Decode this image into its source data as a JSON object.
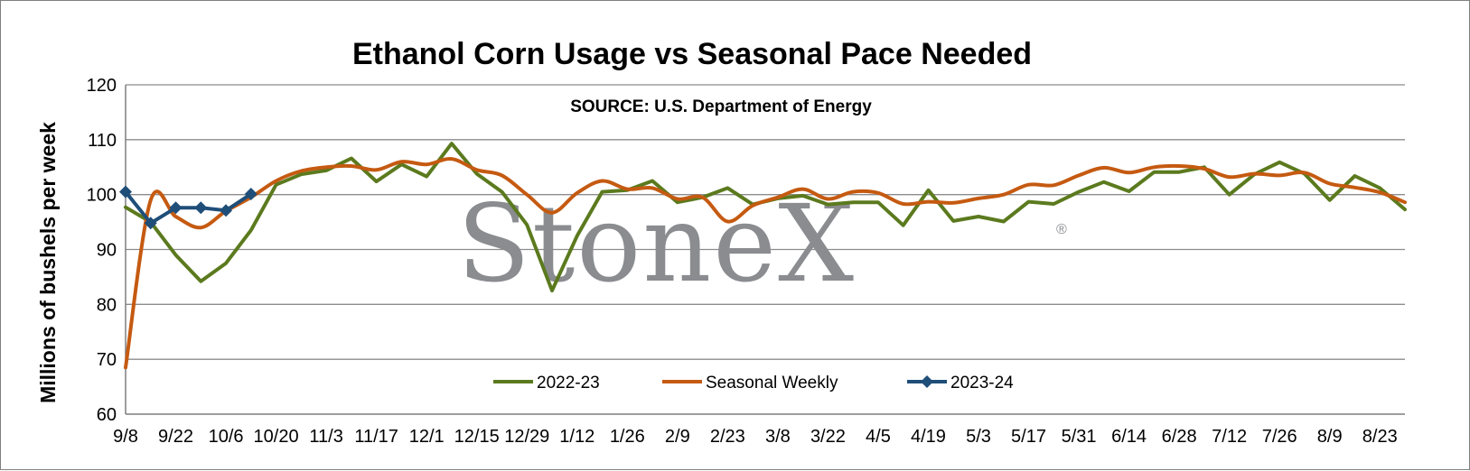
{
  "chart_data": {
    "type": "line",
    "title": "Ethanol Corn Usage vs Seasonal Pace Needed",
    "subtitle": "SOURCE: U.S. Department of Energy",
    "watermark": "StoneX",
    "watermark_mark": "®",
    "ylabel": "Millions of bushels per week",
    "xlabel": "",
    "ylim": [
      60,
      120
    ],
    "yticks": [
      60,
      70,
      80,
      90,
      100,
      110,
      120
    ],
    "xtick_labels": [
      "9/8",
      "9/22",
      "10/6",
      "10/20",
      "11/3",
      "11/17",
      "12/1",
      "12/15",
      "12/29",
      "1/12",
      "1/26",
      "2/9",
      "2/23",
      "3/8",
      "3/22",
      "4/5",
      "4/19",
      "5/3",
      "5/17",
      "5/31",
      "6/14",
      "6/28",
      "7/12",
      "7/26",
      "8/9",
      "8/23"
    ],
    "grid": true,
    "legend_position": "bottom-center",
    "series": [
      {
        "name": "2022-23",
        "color": "#5b7a1e",
        "smooth": false,
        "marker": "none",
        "values": [
          97.7,
          95,
          89,
          84.2,
          87.5,
          93.5,
          101.8,
          103.7,
          104.4,
          106.6,
          102.4,
          105.5,
          103.3,
          109.3,
          103.8,
          100.5,
          94.5,
          82.5,
          92.5,
          100.5,
          100.8,
          102.5,
          98.6,
          99.5,
          101.2,
          98.2,
          99.3,
          99.8,
          98.2,
          98.6,
          98.6,
          94.4,
          100.8,
          95.2,
          96,
          95.1,
          98.7,
          98.3,
          100.5,
          102.3,
          100.6,
          104.1,
          104.1,
          105,
          100,
          103.7,
          105.9,
          103.8,
          99,
          103.4,
          101.2,
          97.3
        ]
      },
      {
        "name": "Seasonal Weekly",
        "color": "#c55a11",
        "smooth": true,
        "marker": "none",
        "values": [
          68.5,
          99,
          96,
          94,
          97,
          99.5,
          102.5,
          104.3,
          105,
          105.2,
          104.5,
          106,
          105.5,
          106.5,
          104.5,
          103.5,
          100,
          96.7,
          100.3,
          102.5,
          101,
          101.2,
          99.2,
          99.5,
          95.1,
          98,
          99.5,
          101,
          99.2,
          100.5,
          100.3,
          98.3,
          98.7,
          98.5,
          99.3,
          100,
          101.8,
          101.7,
          103.5,
          104.9,
          104,
          105,
          105.2,
          104.7,
          103.2,
          103.8,
          103.5,
          104,
          102,
          101.3,
          100.4,
          98.6
        ]
      },
      {
        "name": "2023-24",
        "color": "#1f4e79",
        "smooth": false,
        "marker": "diamond",
        "values": [
          100.5,
          94.8,
          97.6,
          97.6,
          97.1,
          100.1
        ]
      }
    ]
  }
}
